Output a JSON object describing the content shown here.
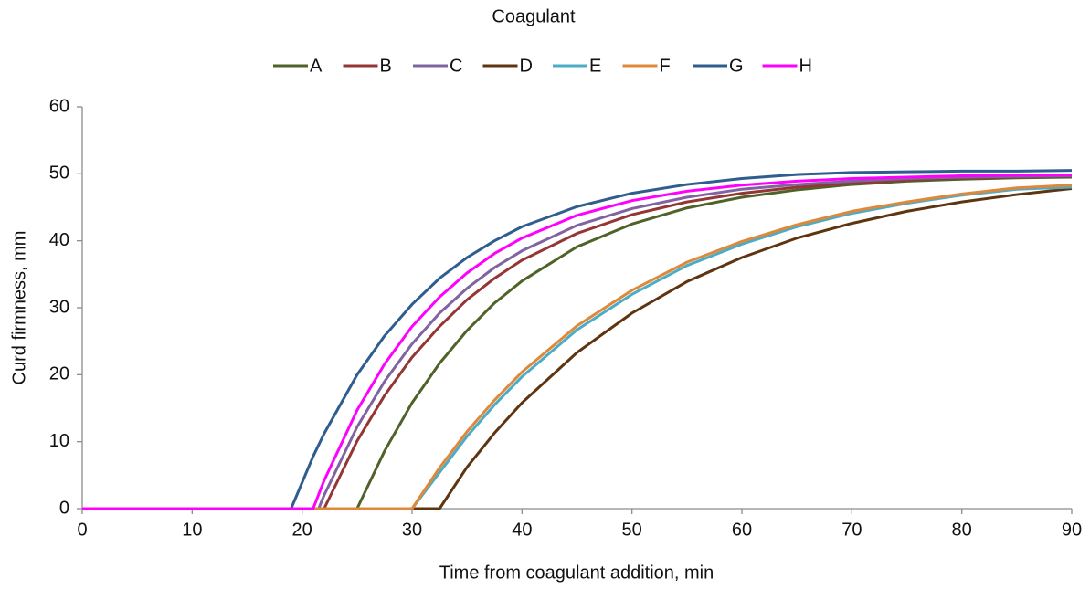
{
  "chart_data": {
    "type": "line",
    "legend_title": "Coagulant",
    "xlabel": "Time from coagulant addition, min",
    "ylabel": "Curd firmness, mm",
    "xlim": [
      0,
      90
    ],
    "xticks": [
      0,
      10,
      20,
      30,
      40,
      50,
      60,
      70,
      80,
      90
    ],
    "ylim": [
      0,
      60
    ],
    "yticks": [
      0,
      10,
      20,
      30,
      40,
      50,
      60
    ],
    "legend": "top",
    "x": [
      0,
      10,
      19,
      21,
      21.5,
      22,
      25,
      27.5,
      30,
      32.5,
      35,
      37.5,
      40,
      45,
      50,
      55,
      60,
      65,
      70,
      75,
      80,
      85,
      90
    ],
    "series": [
      {
        "name": "A",
        "color": "#4f6228",
        "values": [
          0,
          0,
          0,
          0,
          0,
          0,
          0,
          8.6,
          15.8,
          21.7,
          26.6,
          30.7,
          34.0,
          39.1,
          42.5,
          44.9,
          46.5,
          47.6,
          48.4,
          48.9,
          49.2,
          49.4,
          49.5
        ]
      },
      {
        "name": "B",
        "color": "#943634",
        "values": [
          0,
          0,
          0,
          0,
          0,
          0,
          10.1,
          16.9,
          22.6,
          27.2,
          31.2,
          34.4,
          37.1,
          41.1,
          43.9,
          45.8,
          47.1,
          48.0,
          48.6,
          49.1,
          49.4,
          49.5,
          49.7
        ]
      },
      {
        "name": "C",
        "color": "#8064a2",
        "values": [
          0,
          0,
          0,
          0,
          0,
          2.0,
          12.2,
          19.0,
          24.6,
          29.2,
          32.9,
          36.0,
          38.5,
          42.3,
          44.8,
          46.5,
          47.7,
          48.4,
          48.9,
          49.3,
          49.5,
          49.6,
          49.7
        ]
      },
      {
        "name": "D",
        "color": "#5e3510",
        "values": [
          0,
          0,
          0,
          0,
          0,
          0,
          0,
          0,
          0,
          0,
          6.2,
          11.3,
          15.8,
          23.3,
          29.2,
          33.9,
          37.5,
          40.4,
          42.6,
          44.4,
          45.8,
          46.9,
          47.8
        ]
      },
      {
        "name": "E",
        "color": "#4bacc6",
        "values": [
          0,
          0,
          0,
          0,
          0,
          0,
          0,
          0,
          0,
          5.4,
          10.8,
          15.5,
          19.7,
          26.7,
          32.0,
          36.3,
          39.5,
          42.1,
          44.1,
          45.6,
          46.8,
          47.7,
          48.0
        ]
      },
      {
        "name": "F",
        "color": "#e0883a",
        "values": [
          0,
          0,
          0,
          0,
          0,
          0,
          0,
          0,
          0,
          6.1,
          11.5,
          16.2,
          20.4,
          27.3,
          32.6,
          36.8,
          39.9,
          42.4,
          44.4,
          45.8,
          47.0,
          47.9,
          48.3
        ]
      },
      {
        "name": "G",
        "color": "#2e5d8e",
        "values": [
          0,
          0,
          0,
          7.8,
          9.5,
          11.2,
          20.0,
          25.8,
          30.5,
          34.4,
          37.5,
          40.0,
          42.1,
          45.1,
          47.1,
          48.4,
          49.3,
          49.9,
          50.2,
          50.3,
          50.4,
          50.4,
          50.5
        ]
      },
      {
        "name": "H",
        "color": "#ff00ff",
        "values": [
          0,
          0,
          0,
          0,
          2.1,
          4.2,
          14.7,
          21.6,
          27.2,
          31.6,
          35.2,
          38.1,
          40.4,
          43.8,
          46.0,
          47.4,
          48.3,
          48.9,
          49.3,
          49.5,
          49.7,
          49.8,
          49.8
        ]
      }
    ]
  }
}
